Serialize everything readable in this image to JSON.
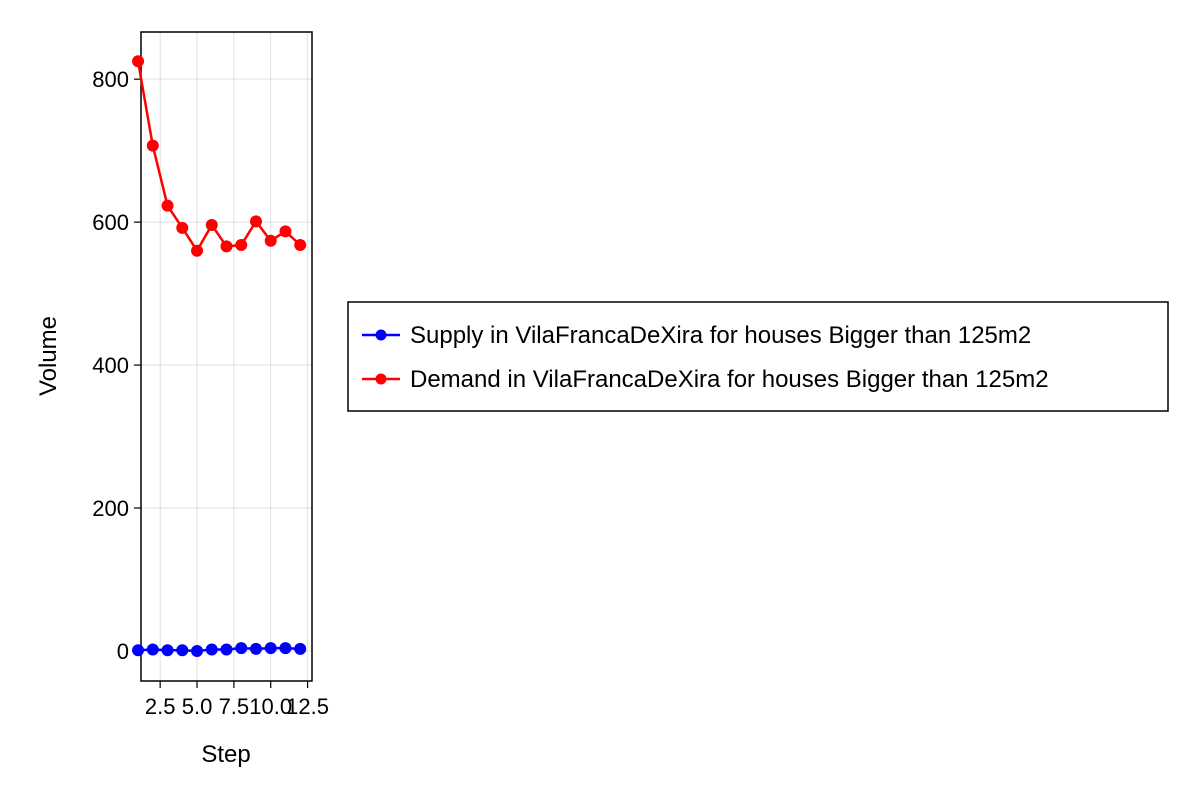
{
  "chart_data": {
    "type": "line",
    "xlabel": "Step",
    "ylabel": "Volume",
    "xlim": [
      1.2,
      12.8
    ],
    "ylim": [
      -42,
      866
    ],
    "xticks": [
      2.5,
      5.0,
      7.5,
      10.0,
      12.5
    ],
    "xtick_labels": [
      "2.5",
      "5.0",
      "7.5",
      "10.0",
      "12.5"
    ],
    "yticks": [
      0,
      200,
      400,
      600,
      800
    ],
    "ytick_labels": [
      "0",
      "200",
      "400",
      "600",
      "800"
    ],
    "grid": true,
    "legend_position": "right",
    "x": [
      1,
      2,
      3,
      4,
      5,
      6,
      7,
      8,
      9,
      10,
      11,
      12
    ],
    "series": [
      {
        "name": "Supply in VilaFrancaDeXira for houses Bigger than 125m2",
        "color": "#0000ff",
        "values": [
          1,
          2,
          1,
          1,
          0,
          2,
          2,
          4,
          3,
          4,
          4,
          3
        ]
      },
      {
        "name": "Demand in VilaFrancaDeXira for houses Bigger than 125m2",
        "color": "#ff0000",
        "values": [
          825,
          707,
          623,
          592,
          560,
          596,
          566,
          568,
          601,
          574,
          587,
          568
        ]
      }
    ]
  }
}
